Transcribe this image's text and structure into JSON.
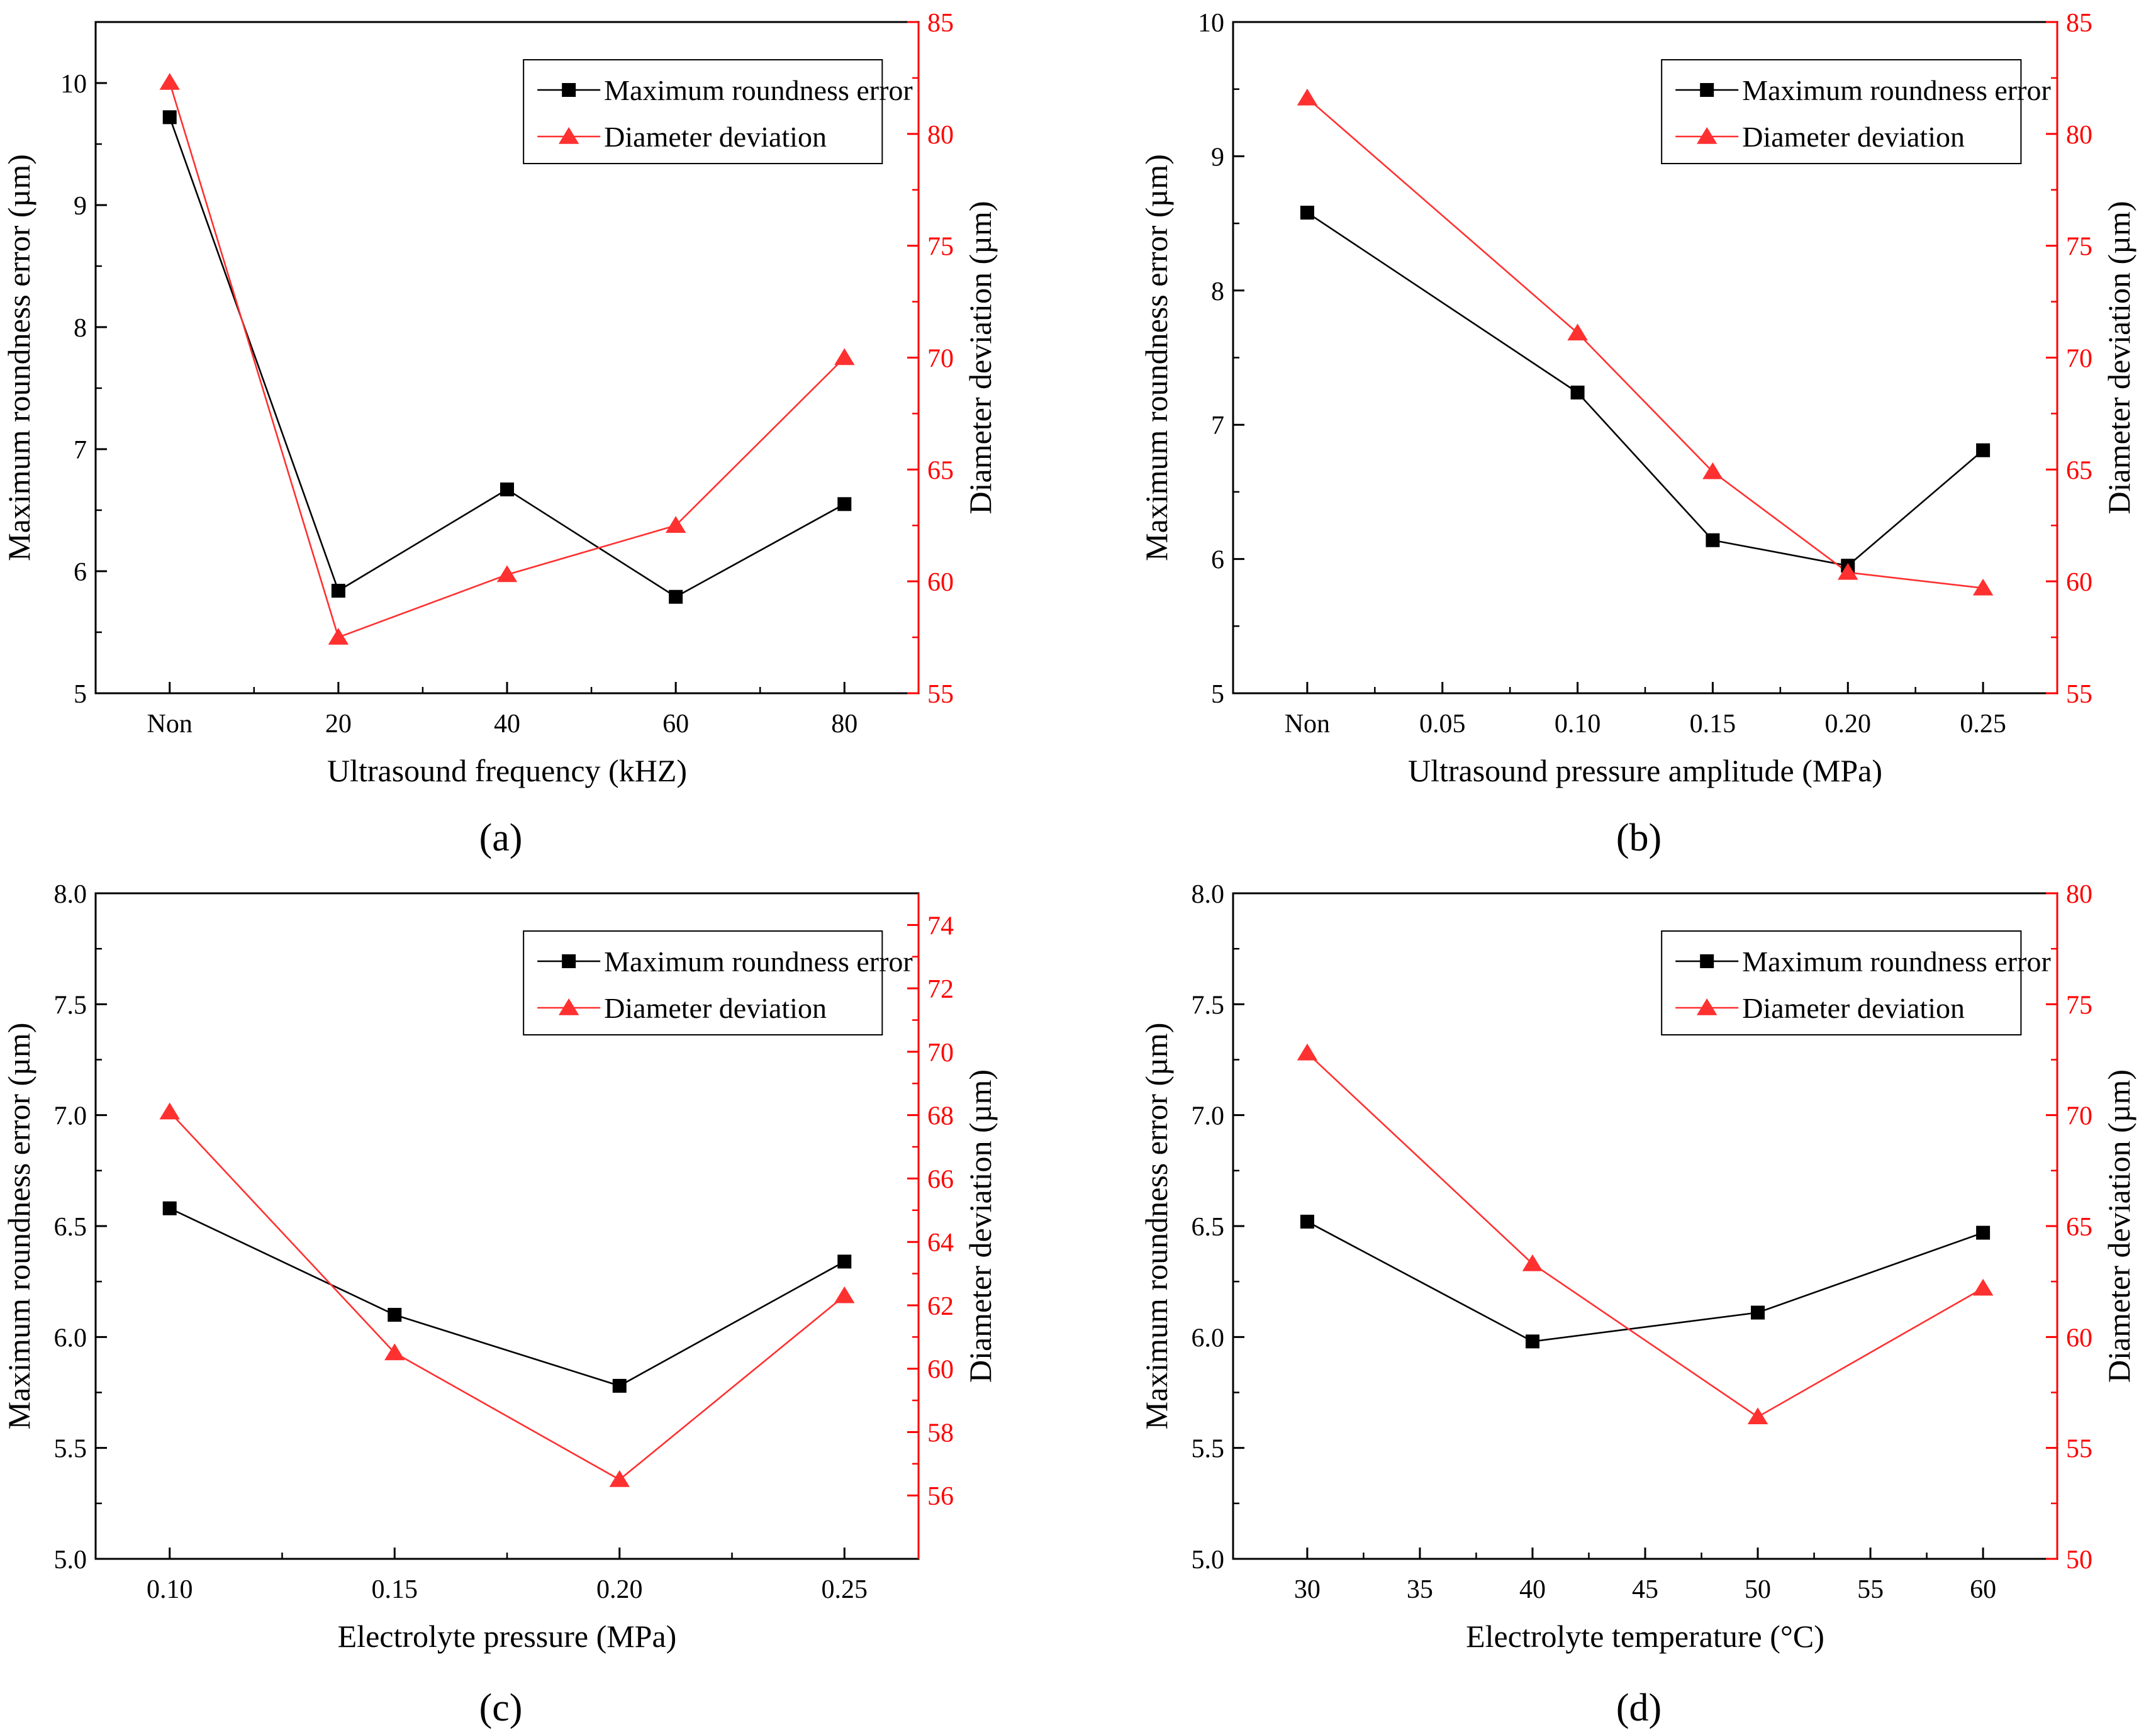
{
  "colors": {
    "left_axis": "#000000",
    "right_axis": "#ff0000",
    "series_left": "#000000",
    "series_right": "#ff3030"
  },
  "chart_data": [
    {
      "type": "line",
      "caption": "(a)",
      "xlabel": "Ultrasound frequency (kHZ)",
      "ylabel": "Maximum roundness error (µm)",
      "y2label": "Diameter deviation (µm)",
      "x_tick_labels": [
        "Non",
        "20",
        "40",
        "60",
        "80"
      ],
      "x_categories": [
        "Non",
        "20",
        "40",
        "60",
        "80"
      ],
      "ylim": [
        5,
        10.5
      ],
      "yticks": [
        5,
        6,
        7,
        8,
        9,
        10
      ],
      "yticks_text": [
        "5",
        "6",
        "7",
        "8",
        "9",
        "10"
      ],
      "y2lim": [
        55,
        85
      ],
      "y2ticks": [
        55,
        60,
        65,
        70,
        75,
        80,
        85
      ],
      "y2ticks_text": [
        "55",
        "60",
        "65",
        "70",
        "75",
        "80",
        "85"
      ],
      "legend": {
        "position": "top-right",
        "entries": [
          "Maximum roundness error",
          "Diameter deviation"
        ]
      },
      "series": [
        {
          "name": "Maximum roundness error",
          "axis": "left",
          "marker": "square",
          "values": [
            9.72,
            5.84,
            6.67,
            5.79,
            6.55
          ]
        },
        {
          "name": "Diameter deviation",
          "axis": "right",
          "marker": "triangle",
          "values": [
            82.3,
            57.5,
            60.3,
            62.5,
            70.0
          ]
        }
      ]
    },
    {
      "type": "line",
      "caption": "(b)",
      "xlabel": "Ultrasound pressure amplitude (MPa)",
      "ylabel": "Maximum roundness error (µm)",
      "y2label": "Diameter deviation (µm)",
      "x_tick_labels": [
        "Non",
        "0.05",
        "0.10",
        "0.15",
        "0.20",
        "0.25"
      ],
      "x_categories": [
        "Non",
        "0.10",
        "0.15",
        "0.20",
        "0.25"
      ],
      "x_category_tick_index": [
        0,
        2,
        3,
        4,
        5
      ],
      "ylim": [
        5,
        10
      ],
      "yticks": [
        5,
        6,
        7,
        8,
        9,
        10
      ],
      "yticks_text": [
        "5",
        "6",
        "7",
        "8",
        "9",
        "10"
      ],
      "y2lim": [
        55,
        85
      ],
      "y2ticks": [
        55,
        60,
        65,
        70,
        75,
        80,
        85
      ],
      "y2ticks_text": [
        "55",
        "60",
        "65",
        "70",
        "75",
        "80",
        "85"
      ],
      "legend": {
        "position": "top-right",
        "entries": [
          "Maximum roundness error",
          "Diameter deviation"
        ]
      },
      "series": [
        {
          "name": "Maximum roundness error",
          "axis": "left",
          "marker": "square",
          "values": [
            8.58,
            7.24,
            6.14,
            5.95,
            6.81
          ]
        },
        {
          "name": "Diameter deviation",
          "axis": "right",
          "marker": "triangle",
          "values": [
            81.6,
            71.1,
            64.9,
            60.4,
            59.7
          ]
        }
      ]
    },
    {
      "type": "line",
      "caption": "(c)",
      "xlabel": "Electrolyte pressure (MPa)",
      "ylabel": "Maximum roundness error (µm)",
      "y2label": "Diameter deviation (µm)",
      "x_tick_labels": [
        "0.10",
        "0.15",
        "0.20",
        "0.25"
      ],
      "x_categories": [
        "0.10",
        "0.15",
        "0.20",
        "0.25"
      ],
      "ylim": [
        5.0,
        8.0
      ],
      "yticks": [
        5.0,
        5.5,
        6.0,
        6.5,
        7.0,
        7.5,
        8.0
      ],
      "yticks_text": [
        "5.0",
        "5.5",
        "6.0",
        "6.5",
        "7.0",
        "7.5",
        "8.0"
      ],
      "y2lim": [
        54,
        75
      ],
      "y2ticks": [
        56,
        58,
        60,
        62,
        64,
        66,
        68,
        70,
        72,
        74
      ],
      "y2ticks_text": [
        "56",
        "58",
        "60",
        "62",
        "64",
        "66",
        "68",
        "70",
        "72",
        "74"
      ],
      "legend": {
        "position": "top-right",
        "entries": [
          "Maximum roundness error",
          "Diameter deviation"
        ]
      },
      "series": [
        {
          "name": "Maximum roundness error",
          "axis": "left",
          "marker": "square",
          "values": [
            6.58,
            6.1,
            5.78,
            6.34
          ]
        },
        {
          "name": "Diameter deviation",
          "axis": "right",
          "marker": "triangle",
          "values": [
            68.1,
            60.5,
            56.5,
            62.3
          ]
        }
      ]
    },
    {
      "type": "line",
      "caption": "(d)",
      "xlabel": "Electrolyte temperature (°C)",
      "ylabel": "Maximum roundness error (µm)",
      "y2label": "Diameter deviation (µm)",
      "x_tick_labels": [
        "30",
        "35",
        "40",
        "45",
        "50",
        "55",
        "60"
      ],
      "x_categories": [
        "30",
        "40",
        "50",
        "60"
      ],
      "x_category_tick_index": [
        0,
        2,
        4,
        6
      ],
      "ylim": [
        5.0,
        8.0
      ],
      "yticks": [
        5.0,
        5.5,
        6.0,
        6.5,
        7.0,
        7.5,
        8.0
      ],
      "yticks_text": [
        "5.0",
        "5.5",
        "6.0",
        "6.5",
        "7.0",
        "7.5",
        "8.0"
      ],
      "y2lim": [
        50,
        80
      ],
      "y2ticks": [
        50,
        55,
        60,
        65,
        70,
        75,
        80
      ],
      "y2ticks_text": [
        "50",
        "55",
        "60",
        "65",
        "70",
        "75",
        "80"
      ],
      "legend": {
        "position": "top-right",
        "entries": [
          "Maximum roundness error",
          "Diameter deviation"
        ]
      },
      "series": [
        {
          "name": "Maximum roundness error",
          "axis": "left",
          "marker": "square",
          "values": [
            6.52,
            5.98,
            6.11,
            6.47
          ]
        },
        {
          "name": "Diameter deviation",
          "axis": "right",
          "marker": "triangle",
          "values": [
            72.8,
            63.3,
            56.4,
            62.2
          ]
        }
      ]
    }
  ]
}
